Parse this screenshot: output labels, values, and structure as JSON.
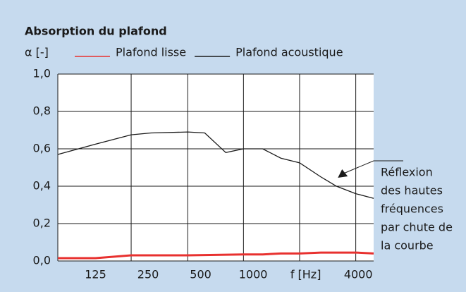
{
  "chart_data": {
    "type": "line",
    "title": "Absorption du plafond",
    "y_label": "α [-]",
    "x_scale": "log",
    "xlim": [
      76,
      4900
    ],
    "xticks": [
      125,
      250,
      500,
      1000,
      {
        "value": 2000,
        "label": "f [Hz]"
      },
      4000
    ],
    "xgrid": [
      200,
      422,
      880,
      1845,
      3870
    ],
    "ylim": [
      0,
      1
    ],
    "yticks": [
      {
        "value": 0,
        "label": "0,0"
      },
      {
        "value": 0.2,
        "label": "0,2"
      },
      {
        "value": 0.4,
        "label": "0,4"
      },
      {
        "value": 0.6,
        "label": "0,6"
      },
      {
        "value": 0.8,
        "label": "0,8"
      },
      {
        "value": 1,
        "label": "1,0"
      }
    ],
    "grid": true,
    "series": [
      {
        "name": "Plafond lisse",
        "color": "#e8312f",
        "x": [
          76,
          125,
          200,
          422,
          880,
          1134,
          1440,
          1845,
          2440,
          3000,
          3870,
          4900
        ],
        "values": [
          0.015,
          0.015,
          0.03,
          0.03,
          0.035,
          0.035,
          0.04,
          0.04,
          0.045,
          0.045,
          0.045,
          0.04
        ]
      },
      {
        "name": "Plafond acoustique",
        "color": "#1a1a1a",
        "x": [
          76,
          125,
          200,
          260,
          422,
          528,
          697,
          880,
          1134,
          1440,
          1845,
          2440,
          3000,
          3870,
          4900
        ],
        "values": [
          0.57,
          0.625,
          0.675,
          0.685,
          0.69,
          0.685,
          0.58,
          0.6,
          0.6,
          0.55,
          0.525,
          0.45,
          0.4,
          0.36,
          0.335
        ]
      }
    ],
    "annotation": {
      "lines": [
        "Réflexion",
        "des hautes",
        "fréquences",
        "par chute de",
        "la courbe"
      ],
      "x": 3000,
      "y": 0.4
    }
  }
}
